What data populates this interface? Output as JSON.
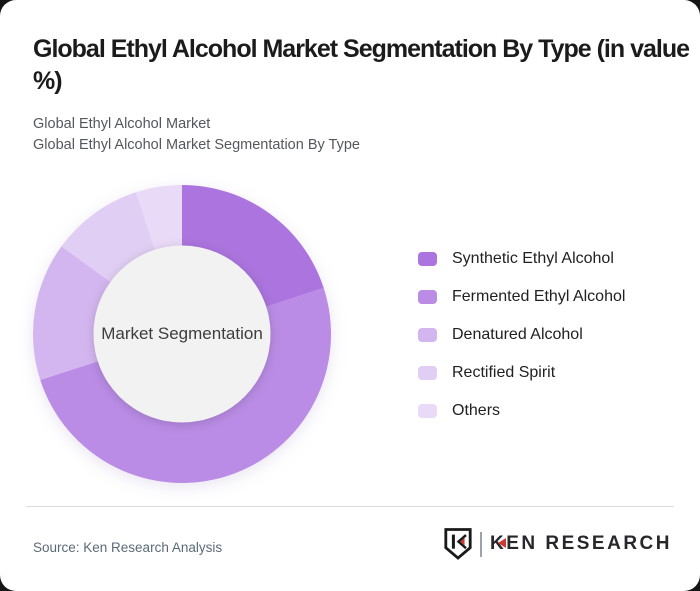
{
  "page": {
    "background": "#151515",
    "card_background": "#ffffff"
  },
  "header": {
    "title": "Global Ethyl Alcohol Market Segmentation By Type (in value %)",
    "subtitle_line1": "Global Ethyl Alcohol Market",
    "subtitle_line2": "Global Ethyl Alcohol Market Segmentation By Type"
  },
  "chart_data": {
    "type": "pie",
    "variant": "donut",
    "title": "Global Ethyl Alcohol Market Segmentation By Type (in value %)",
    "center_label": "Market Segmentation",
    "categories": [
      "Synthetic Ethyl Alcohol",
      "Fermented Ethyl Alcohol",
      "Denatured Alcohol",
      "Rectified Spirit",
      "Others"
    ],
    "values": [
      20,
      50,
      15,
      10,
      5
    ],
    "unit": "value %",
    "colors": [
      "#ab74de",
      "#ba8ce5",
      "#d3b6ef",
      "#e0cef4",
      "#e9daf8"
    ],
    "legend_position": "right",
    "start_angle_deg": 0,
    "clockwise": true,
    "inner_radius_ratio": 0.59,
    "center_fill": "#f2f2f2"
  },
  "footer": {
    "source_text": "Source: Ken Research Analysis",
    "logo": {
      "brand_k": "K",
      "brand_rest": "EN RESEARCH",
      "accent_color": "#cd3a33"
    }
  }
}
